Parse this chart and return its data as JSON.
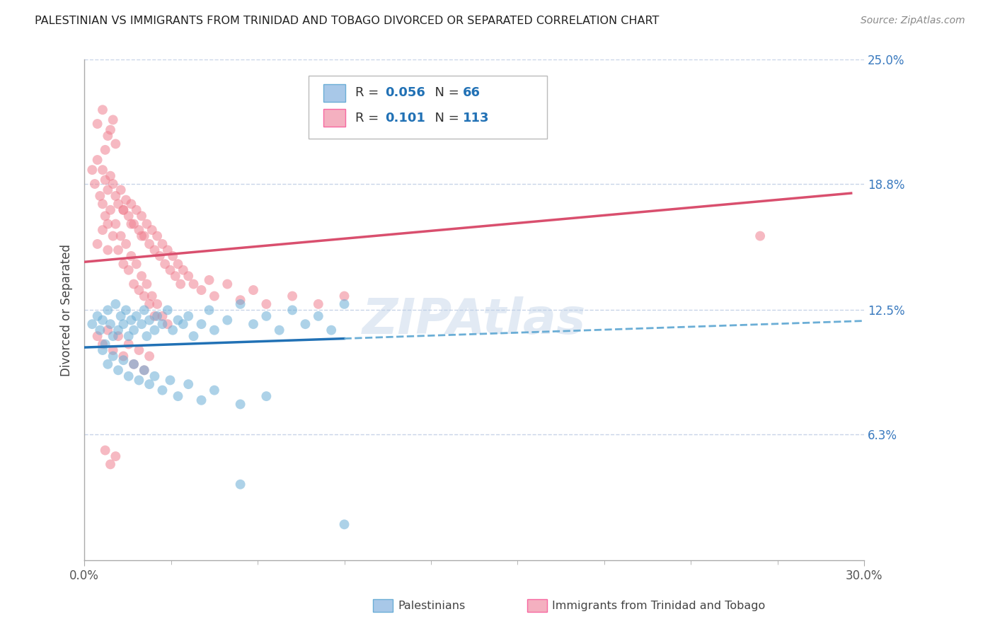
{
  "title": "PALESTINIAN VS IMMIGRANTS FROM TRINIDAD AND TOBAGO DIVORCED OR SEPARATED CORRELATION CHART",
  "source": "Source: ZipAtlas.com",
  "ylabel": "Divorced or Separated",
  "xlim": [
    0.0,
    0.3
  ],
  "ylim": [
    0.0,
    0.25
  ],
  "xtick_positions": [
    0.0,
    0.3
  ],
  "xtick_labels": [
    "0.0%",
    "30.0%"
  ],
  "ytick_values": [
    0.063,
    0.125,
    0.188,
    0.25
  ],
  "ytick_labels": [
    "6.3%",
    "12.5%",
    "18.8%",
    "25.0%"
  ],
  "R_blue": 0.056,
  "N_blue": 66,
  "R_pink": 0.101,
  "N_pink": 113,
  "blue_color": "#6baed6",
  "pink_color": "#f08090",
  "blue_line_solid_color": "#2171b5",
  "blue_line_dash_color": "#6baed6",
  "pink_line_color": "#d94f6e",
  "watermark": "ZIPAtlas",
  "background_color": "#ffffff",
  "grid_color": "#c8d4e8",
  "blue_scatter": [
    [
      0.003,
      0.118
    ],
    [
      0.005,
      0.122
    ],
    [
      0.006,
      0.115
    ],
    [
      0.007,
      0.12
    ],
    [
      0.008,
      0.108
    ],
    [
      0.009,
      0.125
    ],
    [
      0.01,
      0.118
    ],
    [
      0.011,
      0.112
    ],
    [
      0.012,
      0.128
    ],
    [
      0.013,
      0.115
    ],
    [
      0.014,
      0.122
    ],
    [
      0.015,
      0.118
    ],
    [
      0.016,
      0.125
    ],
    [
      0.017,
      0.112
    ],
    [
      0.018,
      0.12
    ],
    [
      0.019,
      0.115
    ],
    [
      0.02,
      0.122
    ],
    [
      0.022,
      0.118
    ],
    [
      0.023,
      0.125
    ],
    [
      0.024,
      0.112
    ],
    [
      0.025,
      0.12
    ],
    [
      0.027,
      0.115
    ],
    [
      0.028,
      0.122
    ],
    [
      0.03,
      0.118
    ],
    [
      0.032,
      0.125
    ],
    [
      0.034,
      0.115
    ],
    [
      0.036,
      0.12
    ],
    [
      0.038,
      0.118
    ],
    [
      0.04,
      0.122
    ],
    [
      0.042,
      0.112
    ],
    [
      0.045,
      0.118
    ],
    [
      0.048,
      0.125
    ],
    [
      0.05,
      0.115
    ],
    [
      0.055,
      0.12
    ],
    [
      0.06,
      0.128
    ],
    [
      0.065,
      0.118
    ],
    [
      0.07,
      0.122
    ],
    [
      0.075,
      0.115
    ],
    [
      0.08,
      0.125
    ],
    [
      0.085,
      0.118
    ],
    [
      0.09,
      0.122
    ],
    [
      0.095,
      0.115
    ],
    [
      0.1,
      0.128
    ],
    [
      0.007,
      0.105
    ],
    [
      0.009,
      0.098
    ],
    [
      0.011,
      0.102
    ],
    [
      0.013,
      0.095
    ],
    [
      0.015,
      0.1
    ],
    [
      0.017,
      0.092
    ],
    [
      0.019,
      0.098
    ],
    [
      0.021,
      0.09
    ],
    [
      0.023,
      0.095
    ],
    [
      0.025,
      0.088
    ],
    [
      0.027,
      0.092
    ],
    [
      0.03,
      0.085
    ],
    [
      0.033,
      0.09
    ],
    [
      0.036,
      0.082
    ],
    [
      0.04,
      0.088
    ],
    [
      0.045,
      0.08
    ],
    [
      0.05,
      0.085
    ],
    [
      0.06,
      0.078
    ],
    [
      0.07,
      0.082
    ],
    [
      0.06,
      0.038
    ],
    [
      0.1,
      0.018
    ]
  ],
  "pink_scatter": [
    [
      0.003,
      0.195
    ],
    [
      0.004,
      0.188
    ],
    [
      0.005,
      0.2
    ],
    [
      0.006,
      0.182
    ],
    [
      0.007,
      0.195
    ],
    [
      0.007,
      0.178
    ],
    [
      0.008,
      0.19
    ],
    [
      0.008,
      0.172
    ],
    [
      0.009,
      0.185
    ],
    [
      0.009,
      0.168
    ],
    [
      0.01,
      0.192
    ],
    [
      0.01,
      0.175
    ],
    [
      0.011,
      0.188
    ],
    [
      0.011,
      0.162
    ],
    [
      0.012,
      0.182
    ],
    [
      0.012,
      0.168
    ],
    [
      0.013,
      0.178
    ],
    [
      0.013,
      0.155
    ],
    [
      0.014,
      0.185
    ],
    [
      0.014,
      0.162
    ],
    [
      0.015,
      0.175
    ],
    [
      0.015,
      0.148
    ],
    [
      0.016,
      0.18
    ],
    [
      0.016,
      0.158
    ],
    [
      0.017,
      0.172
    ],
    [
      0.017,
      0.145
    ],
    [
      0.018,
      0.178
    ],
    [
      0.018,
      0.152
    ],
    [
      0.019,
      0.168
    ],
    [
      0.019,
      0.138
    ],
    [
      0.02,
      0.175
    ],
    [
      0.02,
      0.148
    ],
    [
      0.021,
      0.165
    ],
    [
      0.021,
      0.135
    ],
    [
      0.022,
      0.172
    ],
    [
      0.022,
      0.142
    ],
    [
      0.023,
      0.162
    ],
    [
      0.023,
      0.132
    ],
    [
      0.024,
      0.168
    ],
    [
      0.024,
      0.138
    ],
    [
      0.025,
      0.158
    ],
    [
      0.025,
      0.128
    ],
    [
      0.026,
      0.165
    ],
    [
      0.026,
      0.132
    ],
    [
      0.027,
      0.155
    ],
    [
      0.027,
      0.122
    ],
    [
      0.028,
      0.162
    ],
    [
      0.028,
      0.128
    ],
    [
      0.029,
      0.152
    ],
    [
      0.03,
      0.158
    ],
    [
      0.03,
      0.122
    ],
    [
      0.031,
      0.148
    ],
    [
      0.032,
      0.155
    ],
    [
      0.032,
      0.118
    ],
    [
      0.033,
      0.145
    ],
    [
      0.034,
      0.152
    ],
    [
      0.035,
      0.142
    ],
    [
      0.036,
      0.148
    ],
    [
      0.037,
      0.138
    ],
    [
      0.038,
      0.145
    ],
    [
      0.04,
      0.142
    ],
    [
      0.042,
      0.138
    ],
    [
      0.045,
      0.135
    ],
    [
      0.048,
      0.14
    ],
    [
      0.05,
      0.132
    ],
    [
      0.055,
      0.138
    ],
    [
      0.06,
      0.13
    ],
    [
      0.065,
      0.135
    ],
    [
      0.07,
      0.128
    ],
    [
      0.08,
      0.132
    ],
    [
      0.09,
      0.128
    ],
    [
      0.1,
      0.132
    ],
    [
      0.005,
      0.112
    ],
    [
      0.007,
      0.108
    ],
    [
      0.009,
      0.115
    ],
    [
      0.011,
      0.105
    ],
    [
      0.013,
      0.112
    ],
    [
      0.015,
      0.102
    ],
    [
      0.017,
      0.108
    ],
    [
      0.019,
      0.098
    ],
    [
      0.021,
      0.105
    ],
    [
      0.023,
      0.095
    ],
    [
      0.025,
      0.102
    ],
    [
      0.005,
      0.218
    ],
    [
      0.007,
      0.225
    ],
    [
      0.009,
      0.212
    ],
    [
      0.011,
      0.22
    ],
    [
      0.008,
      0.205
    ],
    [
      0.01,
      0.215
    ],
    [
      0.012,
      0.208
    ],
    [
      0.005,
      0.158
    ],
    [
      0.007,
      0.165
    ],
    [
      0.009,
      0.155
    ],
    [
      0.015,
      0.175
    ],
    [
      0.018,
      0.168
    ],
    [
      0.022,
      0.162
    ],
    [
      0.008,
      0.055
    ],
    [
      0.01,
      0.048
    ],
    [
      0.012,
      0.052
    ],
    [
      0.26,
      0.162
    ]
  ]
}
